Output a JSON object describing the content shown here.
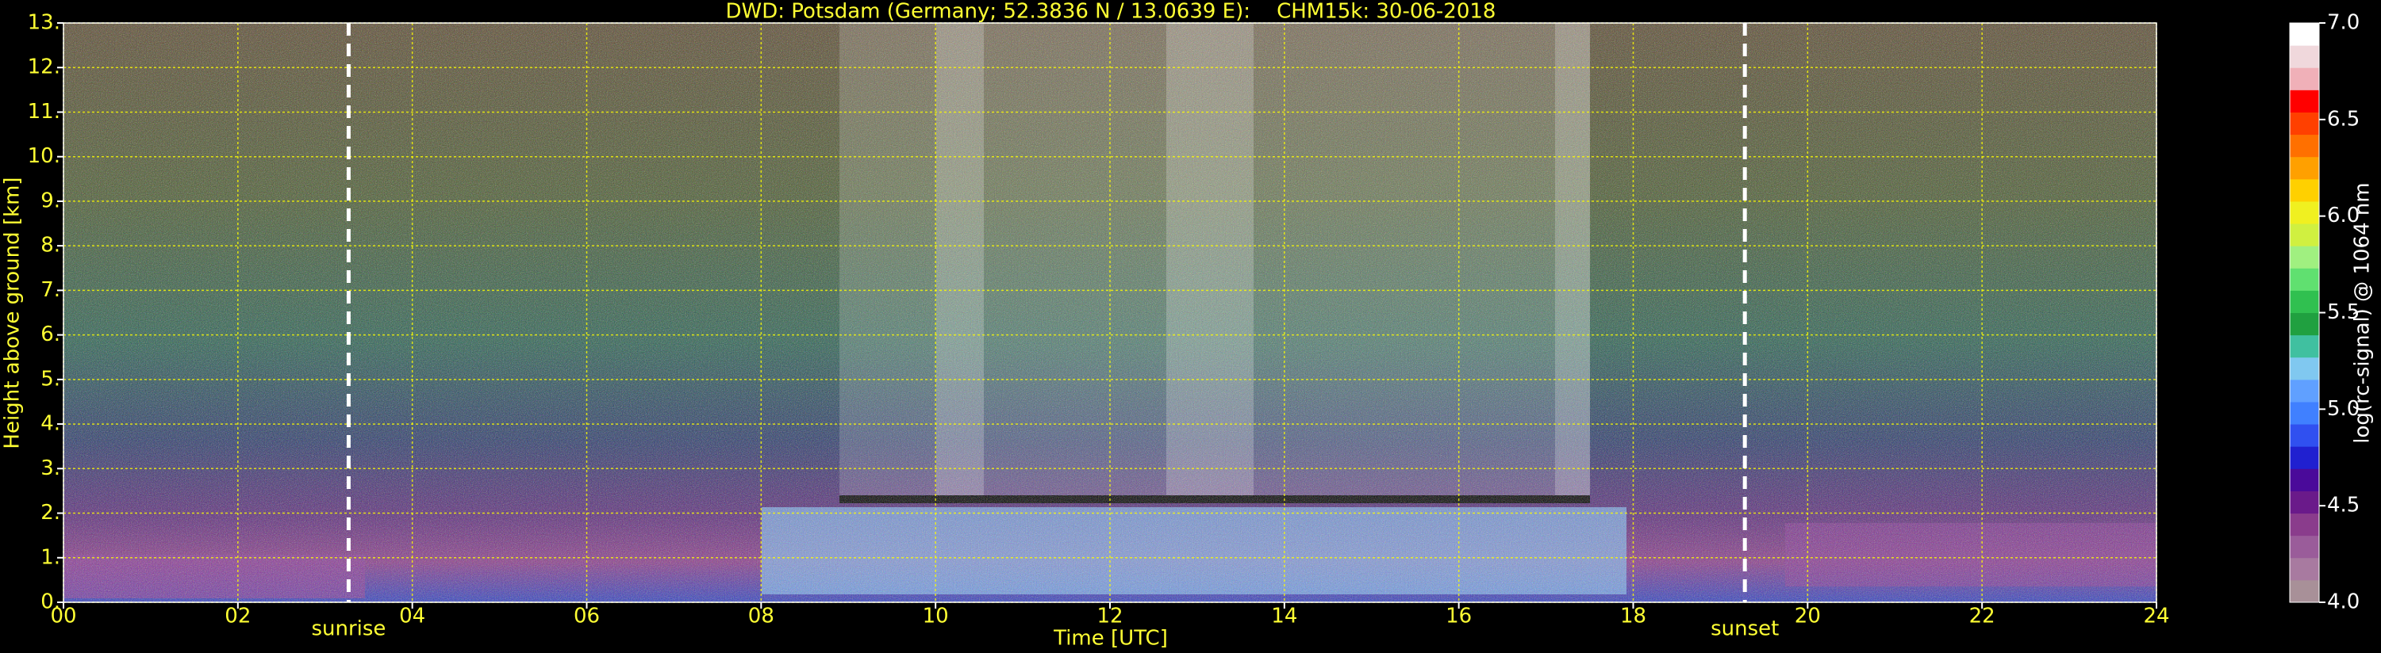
{
  "chart_data": {
    "type": "heatmap",
    "title": "DWD: Potsdam (Germany; 52.3836 N / 13.0639 E):    CHM15k: 30-06-2018",
    "x_label": "Time [UTC]",
    "y_label": "Height above ground [km]",
    "xlim": [
      0,
      24
    ],
    "xticks": [
      {
        "value": 0,
        "label": "00"
      },
      {
        "value": 2,
        "label": "02"
      },
      {
        "value": 4,
        "label": "04"
      },
      {
        "value": 6,
        "label": "06"
      },
      {
        "value": 8,
        "label": "08"
      },
      {
        "value": 10,
        "label": "10"
      },
      {
        "value": 12,
        "label": "12"
      },
      {
        "value": 14,
        "label": "14"
      },
      {
        "value": 16,
        "label": "16"
      },
      {
        "value": 18,
        "label": "18"
      },
      {
        "value": 20,
        "label": "20"
      },
      {
        "value": 22,
        "label": "22"
      },
      {
        "value": 24,
        "label": "24"
      }
    ],
    "ylim": [
      0,
      13
    ],
    "yticks": [
      {
        "value": 0,
        "label": "0."
      },
      {
        "value": 1,
        "label": "1."
      },
      {
        "value": 2,
        "label": "2."
      },
      {
        "value": 3,
        "label": "3."
      },
      {
        "value": 4,
        "label": "4."
      },
      {
        "value": 5,
        "label": "5."
      },
      {
        "value": 6,
        "label": "6."
      },
      {
        "value": 7,
        "label": "7."
      },
      {
        "value": 8,
        "label": "8."
      },
      {
        "value": 9,
        "label": "9."
      },
      {
        "value": 10,
        "label": "10."
      },
      {
        "value": 11,
        "label": "11."
      },
      {
        "value": 12,
        "label": "12."
      },
      {
        "value": 13,
        "label": "13."
      }
    ],
    "grid": true,
    "grid_color": "#ffff00",
    "annotations": [
      {
        "x": 3.27,
        "label": "sunrise"
      },
      {
        "x": 19.28,
        "label": "sunset"
      }
    ],
    "colorbar": {
      "label": "log(rc-signal) @ 1064 nm",
      "lim": [
        4,
        7
      ],
      "ticks": [
        {
          "value": 4,
          "label": "4.0"
        },
        4.5,
        {
          "value": 5,
          "label": "5.0"
        },
        5.5,
        {
          "value": 6,
          "label": "6.0"
        },
        6.5,
        {
          "value": 7,
          "label": "7.0"
        }
      ],
      "colors": [
        "#a89098",
        "#a87aa0",
        "#9a5c9a",
        "#8a3c8c",
        "#6a1a8a",
        "#4a0a9a",
        "#2020d0",
        "#3050f0",
        "#4080ff",
        "#60a0ff",
        "#80c8f0",
        "#40c0a0",
        "#20a040",
        "#30c050",
        "#60e070",
        "#a0f080",
        "#d0f040",
        "#f0f020",
        "#ffd000",
        "#ffa000",
        "#ff7000",
        "#ff4000",
        "#ff0000",
        "#f0b0b8",
        "#f0d8dc",
        "#ffffff"
      ]
    }
  }
}
